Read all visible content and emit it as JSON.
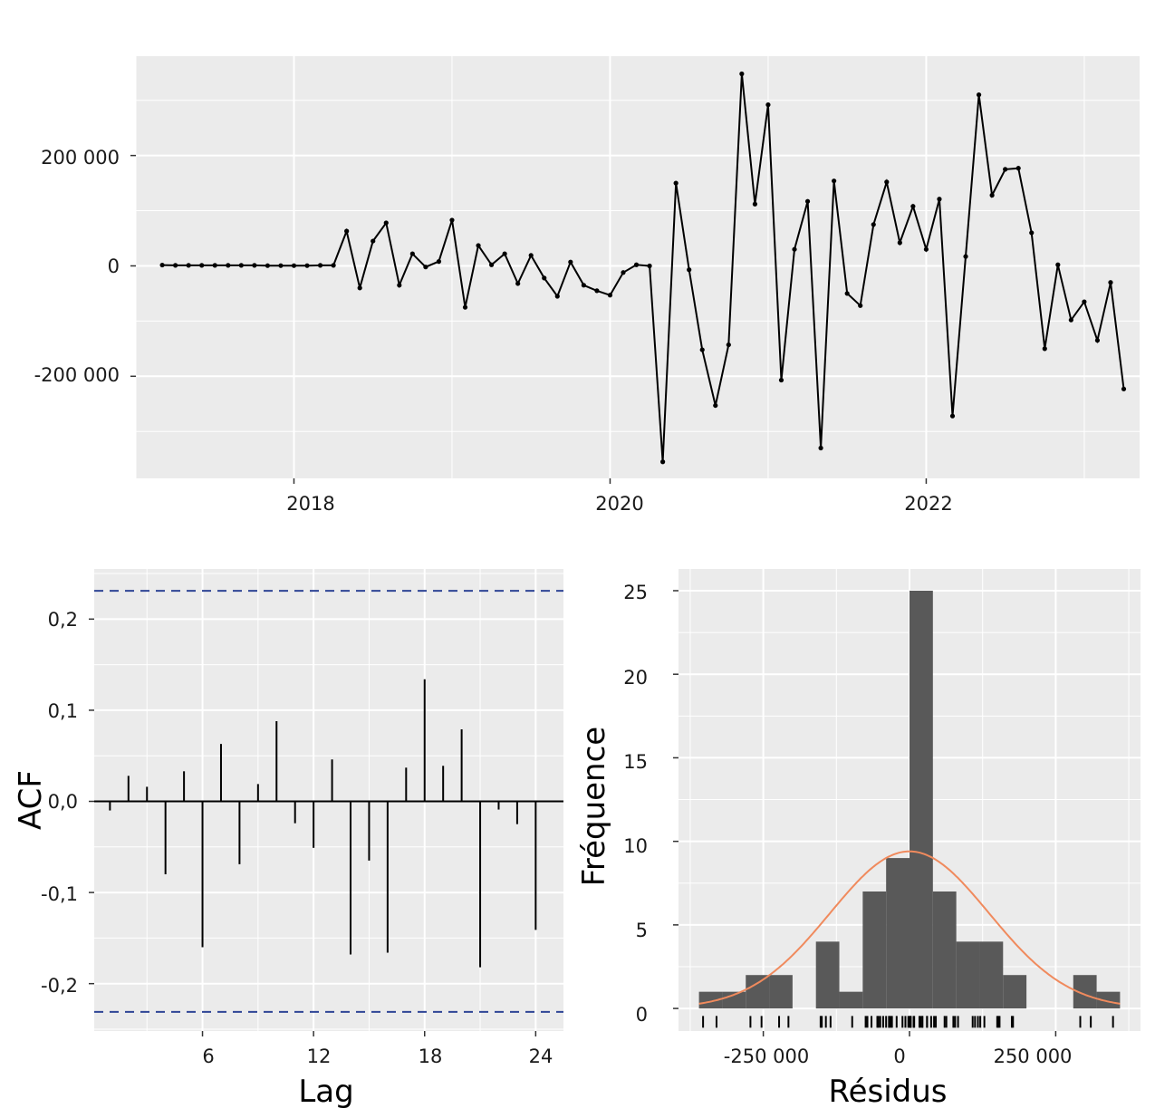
{
  "chart_data": [
    {
      "type": "line",
      "title": "",
      "xlabel": "",
      "ylabel": "",
      "x_tick_labels": [
        "2018",
        "2020",
        "2022"
      ],
      "y_tick_labels": [
        "-200 000",
        "0",
        "200 000"
      ],
      "y_ticks": [
        -200000,
        0,
        200000
      ],
      "x_ticks": [
        2018,
        2020,
        2022
      ],
      "xlim": [
        2017.0,
        2023.35
      ],
      "ylim": [
        -385000,
        380000
      ],
      "grid": true,
      "x_start": 2017.1667,
      "x_step": 0.08333,
      "values": [
        1500,
        1000,
        1000,
        1000,
        1000,
        1000,
        1000,
        1000,
        500,
        500,
        500,
        500,
        1000,
        1000,
        63000,
        -40000,
        45000,
        78000,
        -35000,
        22000,
        -2000,
        8000,
        83000,
        -75000,
        37000,
        2000,
        22000,
        -32000,
        19000,
        -22000,
        -55000,
        7000,
        -35000,
        -45000,
        -53000,
        -12000,
        2000,
        0,
        -355000,
        150000,
        -7000,
        -152000,
        -253000,
        -143000,
        348000,
        112000,
        292000,
        -207000,
        30000,
        117000,
        -330000,
        154000,
        -50000,
        -72000,
        75000,
        152000,
        42000,
        108000,
        30000,
        121000,
        -272000,
        17000,
        310000,
        128000,
        175000,
        177000,
        60000,
        -150000,
        2000,
        -98000,
        -65000,
        -135000,
        -30000,
        -223000
      ]
    },
    {
      "type": "bar",
      "title": "",
      "xlabel": "Lag",
      "ylabel": "ACF",
      "x_tick_labels": [
        "6",
        "12",
        "18",
        "24"
      ],
      "x_ticks": [
        6,
        12,
        18,
        24
      ],
      "y_tick_labels": [
        "-0,2",
        "-0,1",
        "0,0",
        "0,1",
        "0,2"
      ],
      "y_ticks": [
        -0.2,
        -0.1,
        0.0,
        0.1,
        0.2
      ],
      "xlim": [
        0.15,
        25.5
      ],
      "ylim": [
        -0.252,
        0.255
      ],
      "grid": true,
      "lags": [
        1,
        2,
        3,
        4,
        5,
        6,
        7,
        8,
        9,
        10,
        11,
        12,
        13,
        14,
        15,
        16,
        17,
        18,
        19,
        20,
        21,
        22,
        23,
        24
      ],
      "values": [
        -0.01,
        0.028,
        0.016,
        -0.08,
        0.033,
        -0.16,
        0.063,
        -0.069,
        0.019,
        0.088,
        -0.024,
        -0.051,
        0.046,
        -0.168,
        -0.065,
        -0.166,
        0.037,
        0.134,
        0.039,
        0.079,
        -0.182,
        -0.009,
        -0.025,
        -0.141
      ],
      "confidence_bound": 0.231,
      "colors": {
        "bound_line": "#2f4596",
        "bars": "#000000"
      }
    },
    {
      "type": "histogram",
      "title": "",
      "xlabel": "Résidus",
      "ylabel": "Fréquence",
      "x_tick_labels": [
        "-250 000",
        "0",
        "250 000"
      ],
      "x_ticks": [
        -250000,
        0,
        250000
      ],
      "y_tick_labels": [
        "0",
        "5",
        "10",
        "15",
        "20",
        "25"
      ],
      "y_ticks": [
        0,
        5,
        10,
        15,
        20,
        25
      ],
      "xlim": [
        -395000,
        395000
      ],
      "ylim": [
        -1.35,
        26.3
      ],
      "grid": true,
      "bin_width": 40000,
      "bin_starts": [
        -360000,
        -320000,
        -280000,
        -240000,
        -200000,
        -160000,
        -120000,
        -80000,
        -40000,
        0,
        40000,
        80000,
        120000,
        160000,
        200000,
        240000,
        280000,
        320000
      ],
      "counts": [
        1,
        1,
        2,
        2,
        0,
        4,
        1,
        7,
        9,
        25,
        7,
        4,
        4,
        2,
        0,
        0,
        2,
        1
      ],
      "normal_curve": {
        "mean": 0,
        "sd": 136000,
        "peak": 9.4
      },
      "rug": [
        -353000,
        -330000,
        -272000,
        -253000,
        -223000,
        -207000,
        -152000,
        -150000,
        -143000,
        -135000,
        -98000,
        -75000,
        -72000,
        -65000,
        -55000,
        -53000,
        -50000,
        -45000,
        -40000,
        -35000,
        -35000,
        -32000,
        -30000,
        -22000,
        -12000,
        -7000,
        -2000,
        0,
        1000,
        2000,
        2000,
        7000,
        8000,
        17000,
        19000,
        22000,
        22000,
        30000,
        30000,
        37000,
        42000,
        45000,
        60000,
        63000,
        75000,
        78000,
        83000,
        108000,
        112000,
        117000,
        121000,
        128000,
        150000,
        152000,
        154000,
        175000,
        177000,
        292000,
        310000,
        348000
      ],
      "colors": {
        "bars": "#595959",
        "curve": "#f08a5d"
      }
    }
  ]
}
